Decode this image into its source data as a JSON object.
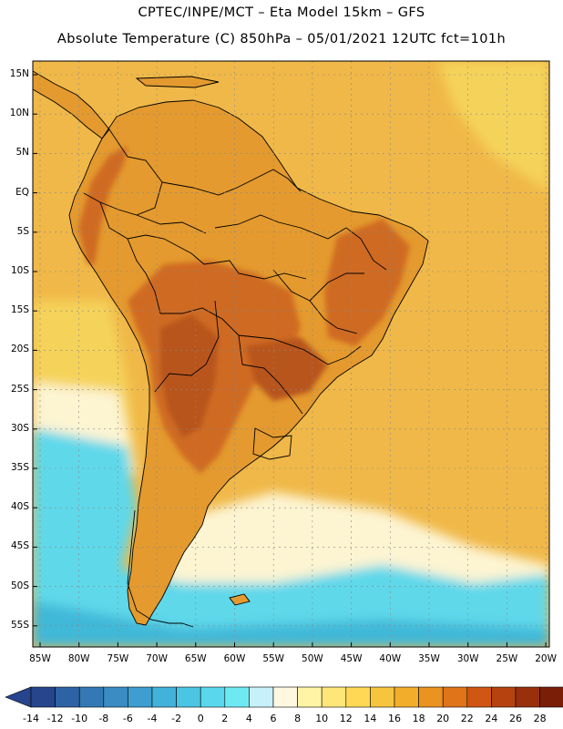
{
  "header": {
    "line1": "CPTEC/INPE/MCT –   Eta Model 15km – GFS",
    "line2": "Absolute Temperature (C) 850hPa – 05/01/2021 12UTC fct=101h"
  },
  "map": {
    "lat_labels": [
      "15N",
      "10N",
      "5N",
      "EQ",
      "5S",
      "10S",
      "15S",
      "20S",
      "25S",
      "30S",
      "35S",
      "40S",
      "45S",
      "50S",
      "55S"
    ],
    "lon_labels": [
      "85W",
      "80W",
      "75W",
      "70W",
      "65W",
      "60W",
      "55W",
      "50W",
      "45W",
      "40W",
      "35W",
      "30W",
      "25W",
      "20W"
    ],
    "colors": {
      "ocean": "#f0b848",
      "land": "#e49a2e",
      "hot": "#cf6a22",
      "hotter": "#b8551f",
      "mild": "#f5d35a",
      "pale": "#fdf4d2",
      "cyan": "#5ed8ea",
      "blue": "#3fb8d8",
      "coast": "#000000"
    }
  },
  "colorbar": {
    "labels": [
      "-14",
      "-12",
      "-10",
      "-8",
      "-6",
      "-4",
      "-2",
      "0",
      "2",
      "4",
      "6",
      "8",
      "10",
      "12",
      "14",
      "16",
      "18",
      "20",
      "22",
      "24",
      "26",
      "28"
    ],
    "colors": [
      "#26458d",
      "#2d62a5",
      "#3479b5",
      "#3a8cc3",
      "#3e9ecf",
      "#43b2da",
      "#4cc4e3",
      "#5ad7ec",
      "#6ee9f4",
      "#c8f0fb",
      "#fff7e0",
      "#fff4a5",
      "#ffe679",
      "#ffd856",
      "#f7c43e",
      "#f2ae2a",
      "#ea9320",
      "#df7419",
      "#cf5713",
      "#b5420f",
      "#97300b",
      "#7a1e07",
      "#6d1209"
    ]
  }
}
